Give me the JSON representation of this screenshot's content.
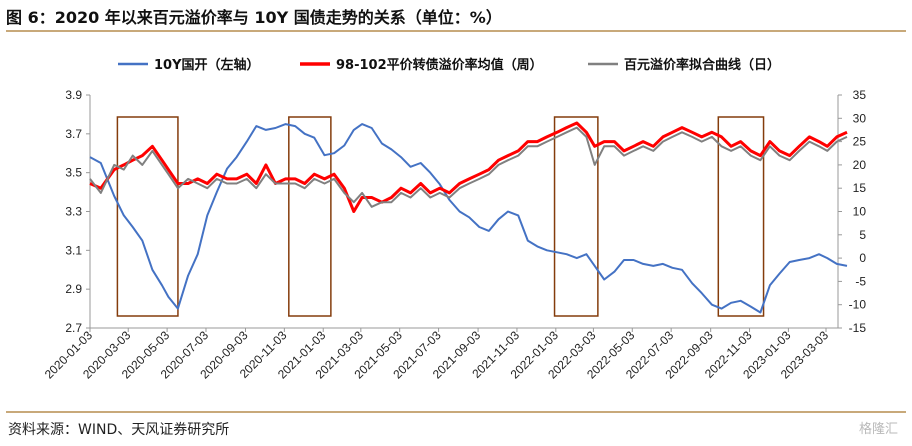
{
  "header": {
    "title": "图 6：2020 年以来百元溢价率与 10Y 国债走势的关系（单位：%）"
  },
  "footer": {
    "source": "资料来源：WIND、天风证券研究所",
    "watermark": "格隆汇"
  },
  "chart_data": {
    "type": "line",
    "title": "图 6：2020 年以来百元溢价率与 10Y 国债走势的关系（单位：%）",
    "legend": {
      "placement": "top",
      "entries": [
        "10Y国开（左轴）",
        "98-102平价转债溢价率均值（周）",
        "百元溢价率拟合曲线（日）"
      ]
    },
    "colors": {
      "bond": "#4472c4",
      "premium_weekly": "#ff0000",
      "premium_fit": "#808080",
      "box": "#843c0c"
    },
    "x_tick_labels": [
      "2020-01-03",
      "2020-03-03",
      "2020-05-03",
      "2020-07-03",
      "2020-09-03",
      "2020-11-03",
      "2021-01-03",
      "2021-03-03",
      "2021-05-03",
      "2021-07-03",
      "2021-09-03",
      "2021-11-03",
      "2022-01-03",
      "2022-03-03",
      "2022-05-03",
      "2022-07-03",
      "2022-09-03",
      "2022-11-03",
      "2023-01-03",
      "2023-03-03"
    ],
    "y_left": {
      "range": [
        2.7,
        3.9
      ],
      "ticks": [
        "2.7",
        "2.9",
        "3.1",
        "3.3",
        "3.5",
        "3.7",
        "3.9"
      ]
    },
    "y_right": {
      "range": [
        -15,
        35
      ],
      "ticks": [
        "-15",
        "-10",
        "-5",
        "0",
        "5",
        "10",
        "15",
        "20",
        "25",
        "30",
        "35"
      ]
    },
    "grid": false,
    "highlight_periods": [
      {
        "start": "2020-02-15",
        "end": "2020-05-20"
      },
      {
        "start": "2020-11-10",
        "end": "2021-01-15"
      },
      {
        "start": "2022-01-01",
        "end": "2022-03-10"
      },
      {
        "start": "2022-09-15",
        "end": "2022-11-25"
      }
    ],
    "series": [
      {
        "name": "10Y国开（左轴）",
        "axis": "left",
        "x": [
          "2020-01-03",
          "2020-01-20",
          "2020-02-10",
          "2020-02-25",
          "2020-03-10",
          "2020-03-25",
          "2020-04-10",
          "2020-04-25",
          "2020-05-05",
          "2020-05-20",
          "2020-06-05",
          "2020-06-20",
          "2020-07-05",
          "2020-07-20",
          "2020-08-05",
          "2020-08-20",
          "2020-09-05",
          "2020-09-20",
          "2020-10-05",
          "2020-10-20",
          "2020-11-05",
          "2020-11-20",
          "2020-12-05",
          "2020-12-20",
          "2021-01-05",
          "2021-01-20",
          "2021-02-05",
          "2021-02-20",
          "2021-03-05",
          "2021-03-20",
          "2021-04-05",
          "2021-04-20",
          "2021-05-05",
          "2021-05-20",
          "2021-06-05",
          "2021-06-20",
          "2021-07-05",
          "2021-07-20",
          "2021-08-05",
          "2021-08-20",
          "2021-09-05",
          "2021-09-20",
          "2021-10-05",
          "2021-10-20",
          "2021-11-05",
          "2021-11-20",
          "2021-12-05",
          "2021-12-20",
          "2022-01-05",
          "2022-01-20",
          "2022-02-05",
          "2022-02-20",
          "2022-03-05",
          "2022-03-20",
          "2022-04-05",
          "2022-04-20",
          "2022-05-05",
          "2022-05-20",
          "2022-06-05",
          "2022-06-20",
          "2022-07-05",
          "2022-07-20",
          "2022-08-05",
          "2022-08-20",
          "2022-09-05",
          "2022-09-20",
          "2022-10-05",
          "2022-10-20",
          "2022-11-05",
          "2022-11-20",
          "2022-12-05",
          "2022-12-20",
          "2023-01-05",
          "2023-01-20",
          "2023-02-05",
          "2023-02-20",
          "2023-03-05",
          "2023-03-20",
          "2023-04-05"
        ],
        "y": [
          3.58,
          3.55,
          3.38,
          3.28,
          3.22,
          3.15,
          3.0,
          2.92,
          2.86,
          2.8,
          2.97,
          3.08,
          3.28,
          3.4,
          3.52,
          3.58,
          3.66,
          3.74,
          3.72,
          3.73,
          3.75,
          3.74,
          3.7,
          3.68,
          3.59,
          3.6,
          3.64,
          3.72,
          3.75,
          3.73,
          3.65,
          3.62,
          3.58,
          3.53,
          3.55,
          3.5,
          3.44,
          3.36,
          3.3,
          3.27,
          3.22,
          3.2,
          3.26,
          3.3,
          3.28,
          3.15,
          3.12,
          3.1,
          3.09,
          3.08,
          3.06,
          3.08,
          3.02,
          2.95,
          2.99,
          3.05,
          3.05,
          3.03,
          3.02,
          3.03,
          3.01,
          3.0,
          2.93,
          2.88,
          2.82,
          2.8,
          2.83,
          2.84,
          2.81,
          2.78,
          2.92,
          2.98,
          3.04,
          3.05,
          3.06,
          3.08,
          3.06,
          3.03,
          3.02
        ]
      },
      {
        "name": "98-102平价转债溢价率均值（周）",
        "axis": "right",
        "x": [
          "2020-01-03",
          "2020-01-20",
          "2020-02-10",
          "2020-02-25",
          "2020-03-10",
          "2020-03-25",
          "2020-04-10",
          "2020-04-25",
          "2020-05-05",
          "2020-05-20",
          "2020-06-05",
          "2020-06-20",
          "2020-07-05",
          "2020-07-20",
          "2020-08-05",
          "2020-08-20",
          "2020-09-05",
          "2020-09-20",
          "2020-10-05",
          "2020-10-20",
          "2020-11-05",
          "2020-11-20",
          "2020-12-05",
          "2020-12-20",
          "2021-01-05",
          "2021-01-20",
          "2021-02-05",
          "2021-02-20",
          "2021-03-05",
          "2021-03-20",
          "2021-04-05",
          "2021-04-20",
          "2021-05-05",
          "2021-05-20",
          "2021-06-05",
          "2021-06-20",
          "2021-07-05",
          "2021-07-20",
          "2021-08-05",
          "2021-08-20",
          "2021-09-05",
          "2021-09-20",
          "2021-10-05",
          "2021-10-20",
          "2021-11-05",
          "2021-11-20",
          "2021-12-05",
          "2021-12-20",
          "2022-01-05",
          "2022-01-20",
          "2022-02-05",
          "2022-02-20",
          "2022-03-05",
          "2022-03-20",
          "2022-04-05",
          "2022-04-20",
          "2022-05-05",
          "2022-05-20",
          "2022-06-05",
          "2022-06-20",
          "2022-07-05",
          "2022-07-20",
          "2022-08-05",
          "2022-08-20",
          "2022-09-05",
          "2022-09-20",
          "2022-10-05",
          "2022-10-20",
          "2022-11-05",
          "2022-11-20",
          "2022-12-05",
          "2022-12-20",
          "2023-01-05",
          "2023-01-20",
          "2023-02-05",
          "2023-02-20",
          "2023-03-05",
          "2023-03-20",
          "2023-04-05"
        ],
        "y": [
          16,
          15,
          19,
          20,
          21,
          22,
          24,
          21,
          19,
          16,
          16,
          17,
          16,
          18,
          17,
          17,
          18,
          16,
          20,
          16,
          17,
          17,
          16,
          18,
          17,
          18,
          15,
          10,
          13,
          13,
          12,
          13,
          15,
          14,
          16,
          14,
          15,
          14,
          16,
          17,
          18,
          19,
          21,
          22,
          23,
          25,
          25,
          26,
          27,
          28,
          29,
          27,
          24,
          25,
          25,
          23,
          24,
          25,
          24,
          26,
          27,
          28,
          27,
          26,
          27,
          26,
          24,
          25,
          23,
          22,
          25,
          23,
          22,
          24,
          26,
          25,
          24,
          26,
          27
        ]
      },
      {
        "name": "百元溢价率拟合曲线（日）",
        "axis": "right",
        "x": [
          "2020-01-03",
          "2020-01-20",
          "2020-02-10",
          "2020-02-25",
          "2020-03-10",
          "2020-03-25",
          "2020-04-10",
          "2020-04-25",
          "2020-05-05",
          "2020-05-20",
          "2020-06-05",
          "2020-06-20",
          "2020-07-05",
          "2020-07-20",
          "2020-08-05",
          "2020-08-20",
          "2020-09-05",
          "2020-09-20",
          "2020-10-05",
          "2020-10-20",
          "2020-11-05",
          "2020-11-20",
          "2020-12-05",
          "2020-12-20",
          "2021-01-05",
          "2021-01-20",
          "2021-02-05",
          "2021-02-20",
          "2021-03-05",
          "2021-03-20",
          "2021-04-05",
          "2021-04-20",
          "2021-05-05",
          "2021-05-20",
          "2021-06-05",
          "2021-06-20",
          "2021-07-05",
          "2021-07-20",
          "2021-08-05",
          "2021-08-20",
          "2021-09-05",
          "2021-09-20",
          "2021-10-05",
          "2021-10-20",
          "2021-11-05",
          "2021-11-20",
          "2021-12-05",
          "2021-12-20",
          "2022-01-05",
          "2022-01-20",
          "2022-02-05",
          "2022-02-20",
          "2022-03-05",
          "2022-03-20",
          "2022-04-05",
          "2022-04-20",
          "2022-05-05",
          "2022-05-20",
          "2022-06-05",
          "2022-06-20",
          "2022-07-05",
          "2022-07-20",
          "2022-08-05",
          "2022-08-20",
          "2022-09-05",
          "2022-09-20",
          "2022-10-05",
          "2022-10-20",
          "2022-11-05",
          "2022-11-20",
          "2022-12-05",
          "2022-12-20",
          "2023-01-05",
          "2023-01-20",
          "2023-02-05",
          "2023-02-20",
          "2023-03-05",
          "2023-03-20",
          "2023-04-05"
        ],
        "y": [
          17,
          14,
          20,
          19,
          22,
          20,
          23,
          20,
          18,
          15,
          17,
          16,
          15,
          17,
          16,
          16,
          17,
          15,
          18,
          16,
          16,
          16,
          15,
          17,
          16,
          17,
          14,
          12,
          14,
          11,
          12,
          12,
          14,
          13,
          15,
          13,
          14,
          13,
          15,
          16,
          17,
          18,
          20,
          21,
          22,
          24,
          24,
          25,
          26,
          27,
          28,
          26,
          20,
          24,
          24,
          22,
          23,
          24,
          23,
          25,
          26,
          27,
          26,
          25,
          26,
          24,
          23,
          24,
          22,
          21,
          24,
          22,
          21,
          23,
          25,
          24,
          23,
          25,
          26
        ]
      }
    ]
  }
}
